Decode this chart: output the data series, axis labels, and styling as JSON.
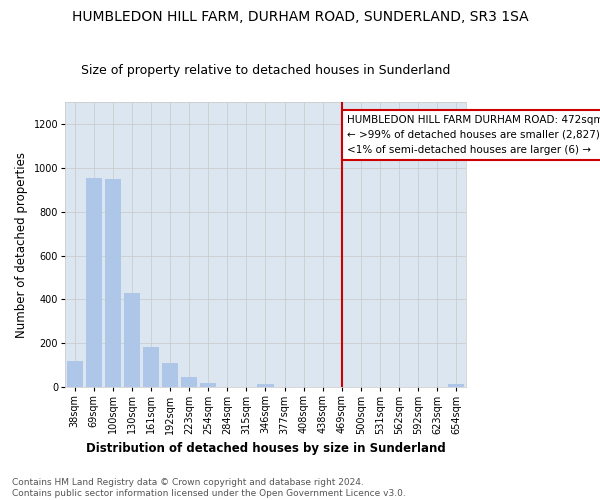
{
  "title": "HUMBLEDON HILL FARM, DURHAM ROAD, SUNDERLAND, SR3 1SA",
  "subtitle": "Size of property relative to detached houses in Sunderland",
  "xlabel": "Distribution of detached houses by size in Sunderland",
  "ylabel": "Number of detached properties",
  "categories": [
    "38sqm",
    "69sqm",
    "100sqm",
    "130sqm",
    "161sqm",
    "192sqm",
    "223sqm",
    "254sqm",
    "284sqm",
    "315sqm",
    "346sqm",
    "377sqm",
    "408sqm",
    "438sqm",
    "469sqm",
    "500sqm",
    "531sqm",
    "562sqm",
    "592sqm",
    "623sqm",
    "654sqm"
  ],
  "values": [
    120,
    955,
    950,
    430,
    185,
    113,
    45,
    20,
    0,
    0,
    15,
    0,
    0,
    0,
    0,
    0,
    0,
    0,
    0,
    0,
    15
  ],
  "bar_color": "#aec6e8",
  "bar_color_highlight": "#cc0000",
  "highlight_index": 14,
  "highlight_shade": "#dce6f1",
  "annotation_text": "HUMBLEDON HILL FARM DURHAM ROAD: 472sqm\n← >99% of detached houses are smaller (2,827)\n<1% of semi-detached houses are larger (6) →",
  "annotation_box_color": "#ffffff",
  "annotation_border_color": "#cc0000",
  "ylim": [
    0,
    1300
  ],
  "yticks": [
    0,
    200,
    400,
    600,
    800,
    1000,
    1200
  ],
  "footer_line1": "Contains HM Land Registry data © Crown copyright and database right 2024.",
  "footer_line2": "Contains public sector information licensed under the Open Government Licence v3.0.",
  "title_fontsize": 10,
  "subtitle_fontsize": 9,
  "axis_label_fontsize": 8.5,
  "tick_fontsize": 7,
  "annotation_fontsize": 7.5,
  "footer_fontsize": 6.5
}
